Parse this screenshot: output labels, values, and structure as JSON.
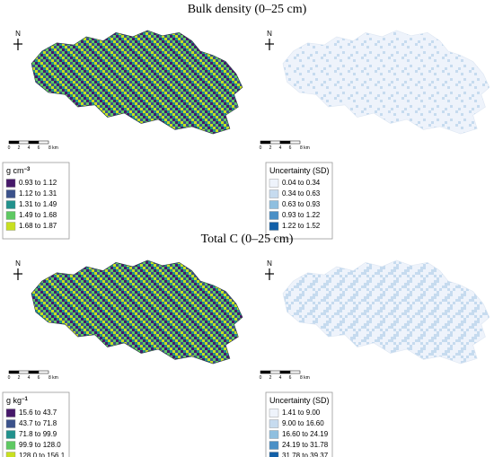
{
  "panels": [
    {
      "title": "Bulk density (0–25 cm)",
      "maps": [
        {
          "north": "N",
          "scale_bar": [
            "0",
            "2",
            "4",
            "6",
            "8 km"
          ],
          "legend": {
            "title": "g cm",
            "title_sup": "−3",
            "entries": [
              {
                "label": "0.93 to 1.12",
                "color": "#46186a"
              },
              {
                "label": "1.12 to 1.31",
                "color": "#3b528b"
              },
              {
                "label": "1.31 to 1.49",
                "color": "#21918c"
              },
              {
                "label": "1.49 to 1.68",
                "color": "#5ec962"
              },
              {
                "label": "1.68 to 1.87",
                "color": "#c8e020"
              }
            ]
          }
        },
        {
          "north": "N",
          "scale_bar": [
            "0",
            "2",
            "4",
            "6",
            "8 km"
          ],
          "legend": {
            "title": "Uncertainty (SD)",
            "entries": [
              {
                "label": "0.04 to 0.34",
                "color": "#eef3fb"
              },
              {
                "label": "0.34 to 0.63",
                "color": "#c6dbef"
              },
              {
                "label": "0.63 to 0.93",
                "color": "#8fbfdf"
              },
              {
                "label": "0.93 to 1.22",
                "color": "#4a90c6"
              },
              {
                "label": "1.22 to 1.52",
                "color": "#1260a8"
              }
            ]
          }
        }
      ]
    },
    {
      "title": "Total C (0–25 cm)",
      "maps": [
        {
          "north": "N",
          "scale_bar": [
            "0",
            "2",
            "4",
            "6",
            "8 km"
          ],
          "legend": {
            "title": "g kg",
            "title_sup": "−1",
            "entries": [
              {
                "label": "15.6 to 43.7",
                "color": "#46186a"
              },
              {
                "label": "43.7 to 71.8",
                "color": "#3b528b"
              },
              {
                "label": "71.8 to 99.9",
                "color": "#21918c"
              },
              {
                "label": "99.9 to 128.0",
                "color": "#5ec962"
              },
              {
                "label": "128.0 to 156.1",
                "color": "#c8e020"
              }
            ]
          }
        },
        {
          "north": "N",
          "scale_bar": [
            "0",
            "2",
            "4",
            "6",
            "8 km"
          ],
          "legend": {
            "title": "Uncertainty (SD)",
            "entries": [
              {
                "label": "1.41 to 9.00",
                "color": "#eef3fb"
              },
              {
                "label": "9.00 to 16.60",
                "color": "#c6dbef"
              },
              {
                "label": "16.60 to 24.19",
                "color": "#8fbfdf"
              },
              {
                "label": "24.19 to 31.78",
                "color": "#4a90c6"
              },
              {
                "label": "31.78 to 39.37",
                "color": "#1260a8"
              }
            ]
          }
        }
      ]
    }
  ]
}
